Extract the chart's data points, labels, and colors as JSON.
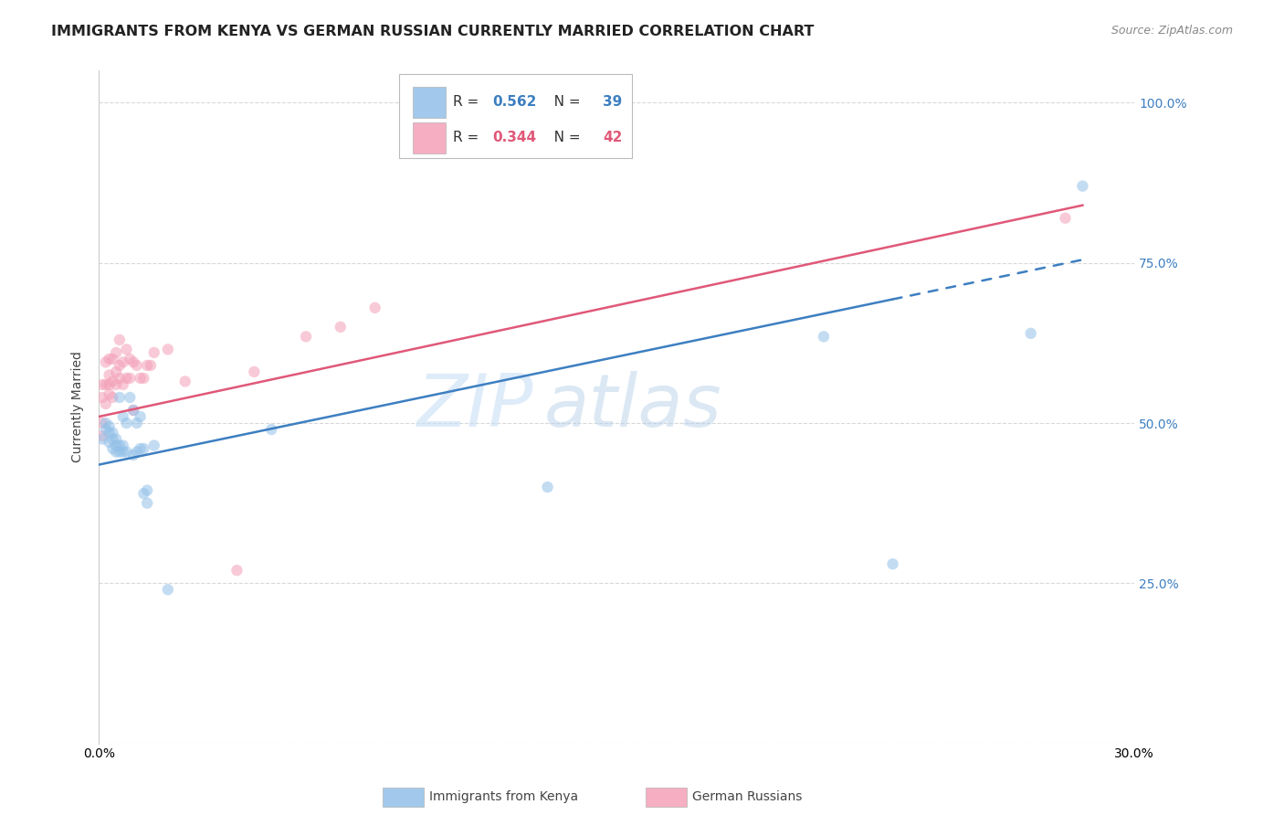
{
  "title": "IMMIGRANTS FROM KENYA VS GERMAN RUSSIAN CURRENTLY MARRIED CORRELATION CHART",
  "source": "Source: ZipAtlas.com",
  "ylabel": "Currently Married",
  "x_min": 0.0,
  "x_max": 0.3,
  "y_min": 0.0,
  "y_max": 1.05,
  "x_ticks": [
    0.0,
    0.05,
    0.1,
    0.15,
    0.2,
    0.25,
    0.3
  ],
  "x_tick_labels": [
    "0.0%",
    "",
    "",
    "",
    "",
    "",
    "30.0%"
  ],
  "y_ticks": [
    0.0,
    0.25,
    0.5,
    0.75,
    1.0
  ],
  "y_tick_labels": [
    "",
    "25.0%",
    "50.0%",
    "75.0%",
    "100.0%"
  ],
  "watermark_text": "ZIP",
  "watermark_text2": "atlas",
  "kenya_color": "#92c0e8",
  "german_russian_color": "#f4a0b8",
  "kenya_line_color": "#3d7fc1",
  "german_russian_line_color": "#e05878",
  "kenya_scatter_x": [
    0.001,
    0.002,
    0.002,
    0.003,
    0.003,
    0.003,
    0.004,
    0.004,
    0.004,
    0.005,
    0.005,
    0.005,
    0.006,
    0.006,
    0.006,
    0.007,
    0.007,
    0.007,
    0.008,
    0.008,
    0.009,
    0.01,
    0.01,
    0.011,
    0.011,
    0.012,
    0.012,
    0.013,
    0.013,
    0.014,
    0.014,
    0.016,
    0.02,
    0.05,
    0.13,
    0.21,
    0.23,
    0.27,
    0.285
  ],
  "kenya_scatter_y": [
    0.475,
    0.49,
    0.5,
    0.47,
    0.485,
    0.495,
    0.46,
    0.475,
    0.485,
    0.455,
    0.465,
    0.475,
    0.455,
    0.465,
    0.54,
    0.455,
    0.465,
    0.51,
    0.455,
    0.5,
    0.54,
    0.45,
    0.52,
    0.455,
    0.5,
    0.46,
    0.51,
    0.39,
    0.46,
    0.375,
    0.395,
    0.465,
    0.24,
    0.49,
    0.4,
    0.635,
    0.28,
    0.64,
    0.87
  ],
  "german_russian_scatter_x": [
    0.001,
    0.001,
    0.001,
    0.001,
    0.002,
    0.002,
    0.002,
    0.003,
    0.003,
    0.003,
    0.003,
    0.004,
    0.004,
    0.004,
    0.005,
    0.005,
    0.005,
    0.006,
    0.006,
    0.006,
    0.007,
    0.007,
    0.008,
    0.008,
    0.009,
    0.009,
    0.01,
    0.01,
    0.011,
    0.012,
    0.013,
    0.014,
    0.015,
    0.016,
    0.02,
    0.025,
    0.04,
    0.045,
    0.06,
    0.07,
    0.08,
    0.28
  ],
  "german_russian_scatter_y": [
    0.48,
    0.5,
    0.54,
    0.56,
    0.53,
    0.56,
    0.595,
    0.545,
    0.56,
    0.575,
    0.6,
    0.54,
    0.565,
    0.6,
    0.56,
    0.58,
    0.61,
    0.57,
    0.59,
    0.63,
    0.56,
    0.595,
    0.57,
    0.615,
    0.57,
    0.6,
    0.52,
    0.595,
    0.59,
    0.57,
    0.57,
    0.59,
    0.59,
    0.61,
    0.615,
    0.565,
    0.27,
    0.58,
    0.635,
    0.65,
    0.68,
    0.82
  ],
  "kenya_trend_x": [
    0.0,
    0.285
  ],
  "kenya_trend_y": [
    0.435,
    0.755
  ],
  "kenya_trend_solid_end_x": 0.23,
  "kenya_trend_dashed_color": "#92c0e8",
  "german_trend_x": [
    0.0,
    0.285
  ],
  "german_trend_y": [
    0.51,
    0.84
  ],
  "background_color": "#ffffff",
  "grid_color": "#d8d8d8",
  "title_fontsize": 11.5,
  "axis_label_fontsize": 10,
  "tick_fontsize": 10,
  "marker_size": 80,
  "marker_alpha": 0.55,
  "right_tick_color": "#3d7fc1",
  "legend_r1_value": "0.562",
  "legend_r1_n": "39",
  "legend_r2_value": "0.344",
  "legend_r2_n": "42"
}
